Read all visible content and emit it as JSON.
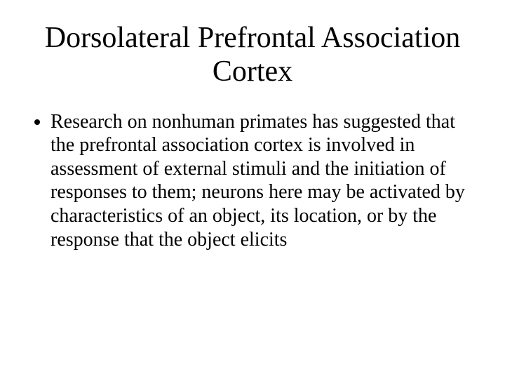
{
  "slide": {
    "title": "Dorsolateral Prefrontal Association Cortex",
    "bullets": [
      "Research on nonhuman primates has suggested that the prefrontal association cortex is involved in assessment of external stimuli and the initiation of responses to them; neurons here may be activated by characteristics of an object, its location, or by the response that the object elicits"
    ],
    "background_color": "#ffffff",
    "text_color": "#000000",
    "title_fontsize": 42,
    "body_fontsize": 28,
    "font_family": "Times New Roman"
  }
}
